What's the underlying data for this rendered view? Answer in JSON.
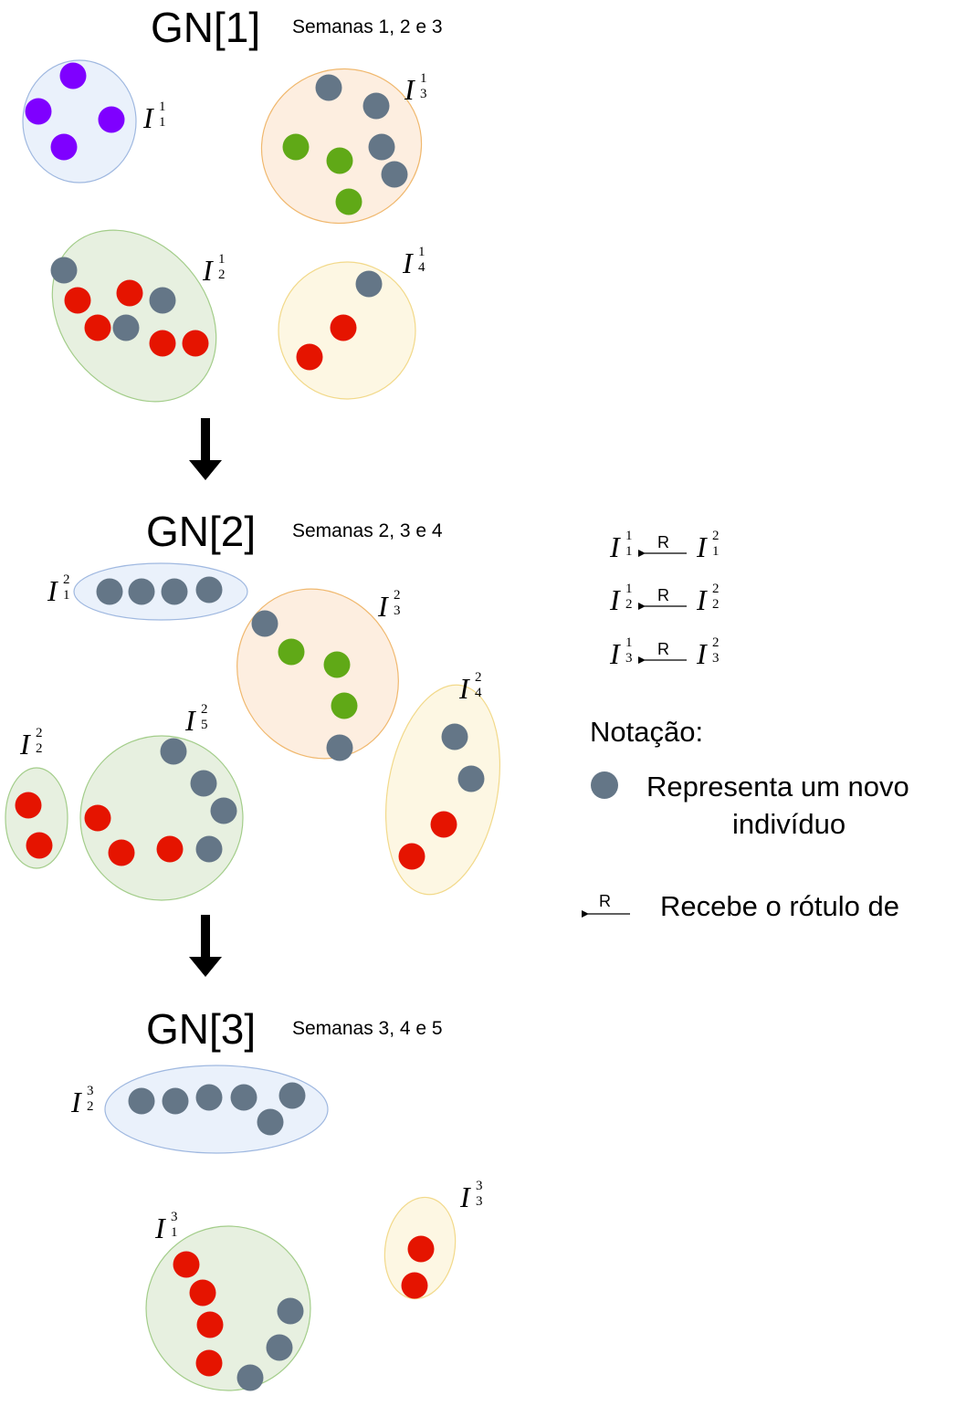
{
  "groups": [
    {
      "title": "GN[1]",
      "weeks": "Semanas 1, 2 e 3"
    },
    {
      "title": "GN[2]",
      "weeks": "Semanas 2, 3 e 4"
    },
    {
      "title": "GN[3]",
      "weeks": "Semanas 3, 4 e 5"
    }
  ],
  "cluster_symbol": "I",
  "clusters": [
    {
      "group": 1,
      "index": 1,
      "fill": "#eaf1fb",
      "stroke": "#9fb8e0",
      "dots": [
        "#7f00ff",
        "#7f00ff",
        "#7f00ff",
        "#7f00ff"
      ]
    },
    {
      "group": 1,
      "index": 3,
      "fill": "#fdeee0",
      "stroke": "#f0b86e",
      "dots": [
        "#647687",
        "#647687",
        "#647687",
        "#647687",
        "#60a917",
        "#60a917",
        "#60a917"
      ]
    },
    {
      "group": 1,
      "index": 2,
      "fill": "#e7f0e0",
      "stroke": "#a3cd8a",
      "dots": [
        "#647687",
        "#e51400",
        "#e51400",
        "#647687",
        "#e51400",
        "#647687",
        "#e51400",
        "#e51400"
      ]
    },
    {
      "group": 1,
      "index": 4,
      "fill": "#fdf7e3",
      "stroke": "#f2d98a",
      "dots": [
        "#647687",
        "#e51400",
        "#e51400"
      ]
    },
    {
      "group": 2,
      "index": 1,
      "fill": "#eaf1fb",
      "stroke": "#9fb8e0",
      "dots": [
        "#647687",
        "#647687",
        "#647687",
        "#647687"
      ]
    },
    {
      "group": 2,
      "index": 3,
      "fill": "#fdeee0",
      "stroke": "#f0b86e",
      "dots": [
        "#647687",
        "#60a917",
        "#60a917",
        "#60a917",
        "#647687"
      ]
    },
    {
      "group": 2,
      "index": 4,
      "fill": "#fdf7e3",
      "stroke": "#f2d98a",
      "dots": [
        "#647687",
        "#647687",
        "#e51400",
        "#e51400"
      ]
    },
    {
      "group": 2,
      "index": 2,
      "fill": "#e7f0e0",
      "stroke": "#a3cd8a",
      "dots": [
        "#e51400",
        "#e51400"
      ]
    },
    {
      "group": 2,
      "index": 5,
      "fill": "#e7f0e0",
      "stroke": "#a3cd8a",
      "dots": [
        "#647687",
        "#647687",
        "#647687",
        "#647687",
        "#e51400",
        "#e51400",
        "#e51400"
      ]
    },
    {
      "group": 3,
      "index": 2,
      "fill": "#eaf1fb",
      "stroke": "#9fb8e0",
      "dots": [
        "#647687",
        "#647687",
        "#647687",
        "#647687",
        "#647687",
        "#647687"
      ]
    },
    {
      "group": 3,
      "index": 1,
      "fill": "#e7f0e0",
      "stroke": "#a3cd8a",
      "dots": [
        "#e51400",
        "#e51400",
        "#e51400",
        "#e51400",
        "#647687",
        "#647687",
        "#647687"
      ]
    },
    {
      "group": 3,
      "index": 3,
      "fill": "#fdf7e3",
      "stroke": "#f2d98a",
      "dots": [
        "#e51400",
        "#e51400"
      ]
    }
  ],
  "mappings": [
    {
      "from_group": 1,
      "from_index": 1,
      "to_group": 2,
      "to_index": 1,
      "label": "R"
    },
    {
      "from_group": 1,
      "from_index": 2,
      "to_group": 2,
      "to_index": 2,
      "label": "R"
    },
    {
      "from_group": 1,
      "from_index": 3,
      "to_group": 2,
      "to_index": 3,
      "label": "R"
    }
  ],
  "notation": {
    "title": "Notação:",
    "dot_color": "#647687",
    "dot_text_line1": "Representa um novo",
    "dot_text_line2": "indivíduo",
    "arrow_label": "R",
    "arrow_text": "Recebe o rótulo de"
  },
  "arrow_color": "#000000"
}
